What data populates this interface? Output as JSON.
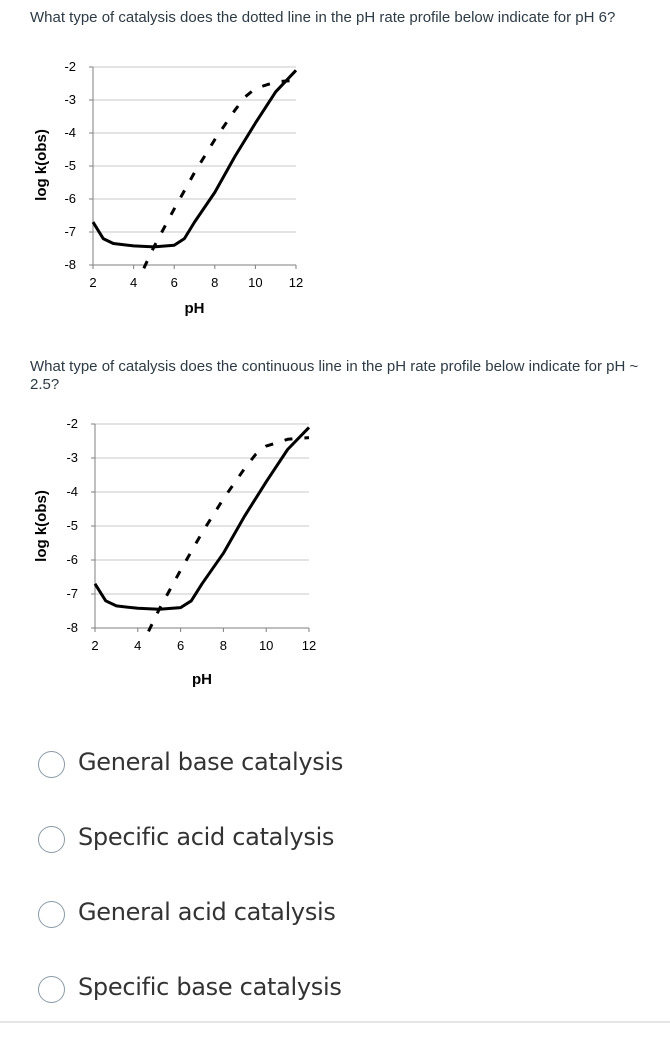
{
  "questions": [
    {
      "text": "What type of catalysis does the dotted line in the pH rate profile below indicate for pH 6?"
    },
    {
      "text": "What type of catalysis does the continuous line in the pH rate profile below indicate for pH ~ 2.5?"
    }
  ],
  "chart_data": [
    {
      "type": "line",
      "xlabel": "pH",
      "ylabel": "log k(obs)",
      "xlim": [
        2,
        12
      ],
      "ylim": [
        -8,
        -2
      ],
      "x_ticks": [
        2,
        4,
        6,
        8,
        10,
        12
      ],
      "y_ticks": [
        -2,
        -3,
        -4,
        -5,
        -6,
        -7,
        -8
      ],
      "grid": "horizontal",
      "legend": "none",
      "series": [
        {
          "style": "solid",
          "x": [
            2,
            2.5,
            3,
            4,
            5,
            6,
            6.5,
            7,
            8,
            9,
            10,
            11,
            12
          ],
          "y": [
            -6.7,
            -7.2,
            -7.35,
            -7.42,
            -7.45,
            -7.4,
            -7.2,
            -6.7,
            -5.8,
            -4.7,
            -3.7,
            -2.75,
            -2.1
          ]
        },
        {
          "style": "dashed",
          "x": [
            4.5,
            5,
            6,
            7,
            8,
            9,
            9.5,
            10,
            11,
            12
          ],
          "y": [
            -8.1,
            -7.45,
            -6.3,
            -5.2,
            -4.2,
            -3.3,
            -2.9,
            -2.65,
            -2.45,
            -2.4
          ]
        }
      ]
    },
    {
      "type": "line",
      "xlabel": "pH",
      "ylabel": "log k(obs)",
      "xlim": [
        2,
        12
      ],
      "ylim": [
        -8,
        -2
      ],
      "x_ticks": [
        2,
        4,
        6,
        8,
        10,
        12
      ],
      "y_ticks": [
        -2,
        -3,
        -4,
        -5,
        -6,
        -7,
        -8
      ],
      "grid": "horizontal",
      "legend": "none",
      "series": [
        {
          "style": "solid",
          "x": [
            2,
            2.5,
            3,
            4,
            5,
            6,
            6.5,
            7,
            8,
            9,
            10,
            11,
            12
          ],
          "y": [
            -6.7,
            -7.2,
            -7.35,
            -7.42,
            -7.45,
            -7.4,
            -7.2,
            -6.7,
            -5.8,
            -4.7,
            -3.7,
            -2.75,
            -2.1
          ]
        },
        {
          "style": "dashed",
          "x": [
            4.5,
            5,
            6,
            7,
            8,
            9,
            9.5,
            10,
            11,
            12
          ],
          "y": [
            -8.1,
            -7.45,
            -6.3,
            -5.2,
            -4.2,
            -3.3,
            -2.9,
            -2.65,
            -2.45,
            -2.4
          ]
        }
      ]
    }
  ],
  "options": [
    {
      "label": "General base catalysis"
    },
    {
      "label": "Specific acid catalysis"
    },
    {
      "label": "General acid catalysis"
    },
    {
      "label": "Specific base catalysis"
    }
  ],
  "colors": {
    "radio_border": "#8a9aa6",
    "text": "#2d3b45",
    "grid": "#c8c8c8",
    "axis": "#7f7f7f",
    "line": "#000000"
  }
}
